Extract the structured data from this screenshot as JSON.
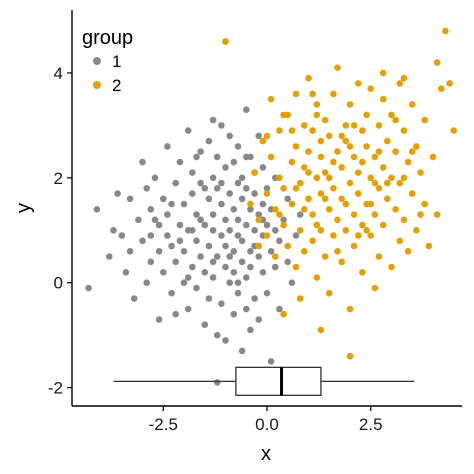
{
  "chart_data": {
    "type": "scatter",
    "xlabel": "x",
    "ylabel": "y",
    "xlim": [
      -4.7,
      4.7
    ],
    "ylim": [
      -2.35,
      5.2
    ],
    "xticks": [
      {
        "value": -2.5,
        "label": "-2.5"
      },
      {
        "value": 0.0,
        "label": "0.0"
      },
      {
        "value": 2.5,
        "label": "2.5"
      }
    ],
    "yticks": [
      {
        "value": -2,
        "label": "-2"
      },
      {
        "value": 0,
        "label": "0"
      },
      {
        "value": 2,
        "label": "2"
      },
      {
        "value": 4,
        "label": "4"
      }
    ],
    "grid": false,
    "legend": {
      "title": "group",
      "position": "top-left",
      "entries": [
        {
          "label": "1",
          "color": "#888888"
        },
        {
          "label": "2",
          "color": "#E69F00"
        }
      ]
    },
    "series": [
      {
        "name": "1",
        "color": "#888888",
        "points": [
          [
            -4.3,
            -0.1
          ],
          [
            -4.1,
            1.4
          ],
          [
            -3.8,
            0.5
          ],
          [
            -3.7,
            1.0
          ],
          [
            -3.6,
            1.7
          ],
          [
            -3.5,
            0.9
          ],
          [
            -3.4,
            0.2
          ],
          [
            -3.3,
            1.6
          ],
          [
            -3.2,
            -0.3
          ],
          [
            -3.1,
            1.2
          ],
          [
            -3.0,
            0.8
          ],
          [
            -3.0,
            2.3
          ],
          [
            -2.9,
            0.0
          ],
          [
            -2.9,
            1.8
          ],
          [
            -2.8,
            0.4
          ],
          [
            -2.8,
            1.4
          ],
          [
            -2.7,
            2.0
          ],
          [
            -2.6,
            0.6
          ],
          [
            -2.6,
            1.1
          ],
          [
            -2.6,
            -0.7
          ],
          [
            -2.5,
            1.6
          ],
          [
            -2.5,
            0.2
          ],
          [
            -2.4,
            0.9
          ],
          [
            -2.4,
            2.6
          ],
          [
            -2.4,
            1.3
          ],
          [
            -2.3,
            -0.2
          ],
          [
            -2.3,
            0.7
          ],
          [
            -2.2,
            1.9
          ],
          [
            -2.2,
            0.4
          ],
          [
            -2.1,
            1.1
          ],
          [
            -2.1,
            2.3
          ],
          [
            -2.0,
            0.0
          ],
          [
            -2.0,
            1.5
          ],
          [
            -2.0,
            0.6
          ],
          [
            -1.9,
            2.9
          ],
          [
            -1.9,
            -0.5
          ],
          [
            -1.9,
            1.0
          ],
          [
            -1.8,
            1.7
          ],
          [
            -1.8,
            0.3
          ],
          [
            -1.8,
            2.1
          ],
          [
            -1.7,
            0.8
          ],
          [
            -1.7,
            -0.1
          ],
          [
            -1.7,
            1.3
          ],
          [
            -1.6,
            2.5
          ],
          [
            -1.6,
            0.5
          ],
          [
            -1.6,
            1.9
          ],
          [
            -1.5,
            -0.8
          ],
          [
            -1.5,
            1.1
          ],
          [
            -1.5,
            0.2
          ],
          [
            -1.4,
            1.6
          ],
          [
            -1.4,
            2.7
          ],
          [
            -1.4,
            0.7
          ],
          [
            -1.4,
            -0.3
          ],
          [
            -1.3,
            1.3
          ],
          [
            -1.3,
            2.0
          ],
          [
            -1.3,
            0.1
          ],
          [
            -1.3,
            1.0
          ],
          [
            -1.2,
            -1.0
          ],
          [
            -1.2,
            1.8
          ],
          [
            -1.2,
            0.5
          ],
          [
            -1.2,
            2.4
          ],
          [
            -1.1,
            0.9
          ],
          [
            -1.1,
            -0.4
          ],
          [
            -1.1,
            1.5
          ],
          [
            -1.1,
            3.0
          ],
          [
            -1.0,
            0.3
          ],
          [
            -1.0,
            1.2
          ],
          [
            -1.0,
            2.2
          ],
          [
            -1.0,
            -1.1
          ],
          [
            -1.0,
            0.7
          ],
          [
            -0.9,
            1.7
          ],
          [
            -0.9,
            0.0
          ],
          [
            -0.9,
            2.8
          ],
          [
            -0.9,
            1.0
          ],
          [
            -0.8,
            -0.6
          ],
          [
            -0.8,
            0.6
          ],
          [
            -0.8,
            1.4
          ],
          [
            -0.8,
            2.3
          ],
          [
            -0.8,
            0.2
          ],
          [
            -0.7,
            1.9
          ],
          [
            -0.7,
            -0.2
          ],
          [
            -0.7,
            0.9
          ],
          [
            -0.7,
            1.2
          ],
          [
            -0.7,
            2.6
          ],
          [
            -0.6,
            0.4
          ],
          [
            -0.6,
            -1.3
          ],
          [
            -0.6,
            1.6
          ],
          [
            -0.6,
            0.8
          ],
          [
            -0.6,
            2.0
          ],
          [
            -0.5,
            -0.5
          ],
          [
            -0.5,
            1.1
          ],
          [
            -0.5,
            0.1
          ],
          [
            -0.5,
            1.8
          ],
          [
            -0.5,
            3.3
          ],
          [
            -0.4,
            0.6
          ],
          [
            -0.4,
            1.4
          ],
          [
            -0.4,
            -0.9
          ],
          [
            -0.4,
            2.4
          ],
          [
            -0.4,
            0.3
          ],
          [
            -0.3,
            1.0
          ],
          [
            -0.3,
            1.7
          ],
          [
            -0.3,
            -0.3
          ],
          [
            -0.3,
            2.1
          ],
          [
            -0.2,
            0.5
          ],
          [
            -0.2,
            1.3
          ],
          [
            -0.2,
            2.8
          ],
          [
            -0.2,
            -0.7
          ],
          [
            -0.1,
            0.9
          ],
          [
            -0.1,
            1.5
          ],
          [
            -0.1,
            0.2
          ],
          [
            -0.1,
            2.2
          ],
          [
            0.0,
            -0.2
          ],
          [
            0.0,
            1.1
          ],
          [
            0.0,
            1.8
          ],
          [
            0.1,
            0.6
          ],
          [
            0.1,
            1.4
          ],
          [
            0.1,
            -1.5
          ],
          [
            0.2,
            0.3
          ],
          [
            0.2,
            1.0
          ],
          [
            0.2,
            2.0
          ],
          [
            0.3,
            0.8
          ],
          [
            0.3,
            -0.5
          ],
          [
            0.4,
            1.2
          ],
          [
            0.5,
            0.4
          ],
          [
            0.5,
            1.6
          ],
          [
            0.6,
            0.0
          ],
          [
            0.7,
            0.9
          ],
          [
            0.8,
            1.3
          ],
          [
            -3.3,
            0.6
          ],
          [
            -2.7,
            1.2
          ],
          [
            -2.3,
            1.5
          ],
          [
            -2.1,
            0.8
          ],
          [
            -1.9,
            0.1
          ],
          [
            -1.7,
            2.4
          ],
          [
            -1.5,
            1.8
          ],
          [
            -1.3,
            0.4
          ],
          [
            -1.1,
            1.9
          ],
          [
            -0.9,
            0.5
          ],
          [
            -0.7,
            0.0
          ],
          [
            -0.5,
            2.4
          ],
          [
            -0.3,
            0.7
          ],
          [
            -0.1,
            1.2
          ],
          [
            -1.6,
            1.2
          ],
          [
            -2.2,
            -0.6
          ],
          [
            -1.0,
            4.6
          ],
          [
            -1.3,
            3.1
          ],
          [
            -0.2,
            -1.9
          ],
          [
            -1.2,
            -1.9
          ],
          [
            -2.8,
            0.9
          ],
          [
            -1.8,
            1.0
          ]
        ]
      },
      {
        "name": "2",
        "color": "#E69F00",
        "points": [
          [
            -1.0,
            4.6
          ],
          [
            -0.3,
            2.1
          ],
          [
            -0.2,
            1.2
          ],
          [
            -0.1,
            2.7
          ],
          [
            0.0,
            0.9
          ],
          [
            0.0,
            1.7
          ],
          [
            0.1,
            2.4
          ],
          [
            0.1,
            3.5
          ],
          [
            0.2,
            1.4
          ],
          [
            0.2,
            0.5
          ],
          [
            0.3,
            2.0
          ],
          [
            0.3,
            2.9
          ],
          [
            0.4,
            1.1
          ],
          [
            0.4,
            1.8
          ],
          [
            0.5,
            3.2
          ],
          [
            0.5,
            0.7
          ],
          [
            0.6,
            2.3
          ],
          [
            0.6,
            1.5
          ],
          [
            0.7,
            3.6
          ],
          [
            0.7,
            0.3
          ],
          [
            0.7,
            2.6
          ],
          [
            0.8,
            1.9
          ],
          [
            0.8,
            1.0
          ],
          [
            0.9,
            3.0
          ],
          [
            0.9,
            2.2
          ],
          [
            0.9,
            0.6
          ],
          [
            1.0,
            1.6
          ],
          [
            1.0,
            3.9
          ],
          [
            1.0,
            2.5
          ],
          [
            1.1,
            0.8
          ],
          [
            1.1,
            1.3
          ],
          [
            1.1,
            2.9
          ],
          [
            1.2,
            2.0
          ],
          [
            1.2,
            0.1
          ],
          [
            1.2,
            3.4
          ],
          [
            1.3,
            1.7
          ],
          [
            1.3,
            2.4
          ],
          [
            1.3,
            1.0
          ],
          [
            1.4,
            3.1
          ],
          [
            1.4,
            0.5
          ],
          [
            1.4,
            2.1
          ],
          [
            1.5,
            1.4
          ],
          [
            1.5,
            2.8
          ],
          [
            1.5,
            -0.2
          ],
          [
            1.6,
            1.8
          ],
          [
            1.6,
            3.6
          ],
          [
            1.6,
            0.9
          ],
          [
            1.7,
            2.5
          ],
          [
            1.7,
            1.2
          ],
          [
            1.7,
            4.1
          ],
          [
            1.8,
            0.4
          ],
          [
            1.8,
            2.2
          ],
          [
            1.8,
            1.6
          ],
          [
            1.9,
            3.0
          ],
          [
            1.9,
            1.0
          ],
          [
            1.9,
            2.7
          ],
          [
            2.0,
            -0.5
          ],
          [
            2.0,
            1.9
          ],
          [
            2.0,
            3.4
          ],
          [
            2.1,
            1.3
          ],
          [
            2.1,
            2.4
          ],
          [
            2.1,
            0.7
          ],
          [
            2.2,
            3.8
          ],
          [
            2.2,
            1.7
          ],
          [
            2.2,
            2.1
          ],
          [
            2.3,
            0.2
          ],
          [
            2.3,
            2.9
          ],
          [
            2.3,
            1.1
          ],
          [
            2.4,
            3.2
          ],
          [
            2.4,
            1.5
          ],
          [
            2.4,
            2.6
          ],
          [
            2.5,
            0.9
          ],
          [
            2.5,
            2.0
          ],
          [
            2.5,
            3.7
          ],
          [
            2.6,
            1.3
          ],
          [
            2.6,
            2.4
          ],
          [
            2.6,
            -0.1
          ],
          [
            2.7,
            1.8
          ],
          [
            2.7,
            3.0
          ],
          [
            2.7,
            0.5
          ],
          [
            2.8,
            2.2
          ],
          [
            2.8,
            1.1
          ],
          [
            2.8,
            3.5
          ],
          [
            2.9,
            1.6
          ],
          [
            2.9,
            2.7
          ],
          [
            3.0,
            0.3
          ],
          [
            3.0,
            2.0
          ],
          [
            3.0,
            3.2
          ],
          [
            3.1,
            1.4
          ],
          [
            3.1,
            2.5
          ],
          [
            3.2,
            0.8
          ],
          [
            3.2,
            3.8
          ],
          [
            3.2,
            1.9
          ],
          [
            3.3,
            2.9
          ],
          [
            3.3,
            1.2
          ],
          [
            3.4,
            2.3
          ],
          [
            3.4,
            0.6
          ],
          [
            3.5,
            3.4
          ],
          [
            3.5,
            1.7
          ],
          [
            3.6,
            2.6
          ],
          [
            3.6,
            1.0
          ],
          [
            3.7,
            2.1
          ],
          [
            3.8,
            3.1
          ],
          [
            3.8,
            1.5
          ],
          [
            3.9,
            0.7
          ],
          [
            4.0,
            2.4
          ],
          [
            4.1,
            1.3
          ],
          [
            4.2,
            3.7
          ],
          [
            4.3,
            4.8
          ],
          [
            4.4,
            3.8
          ],
          [
            4.5,
            2.9
          ],
          [
            2.0,
            -1.4
          ],
          [
            1.3,
            -0.9
          ],
          [
            0.8,
            -0.3
          ],
          [
            0.4,
            -0.6
          ],
          [
            -0.4,
            1.5
          ],
          [
            -0.2,
            0.7
          ],
          [
            0.0,
            2.8
          ],
          [
            0.3,
            1.3
          ],
          [
            0.6,
            2.9
          ],
          [
            0.9,
            1.4
          ],
          [
            1.1,
            3.6
          ],
          [
            1.3,
            2.7
          ],
          [
            1.5,
            2.0
          ],
          [
            1.7,
            0.6
          ],
          [
            1.9,
            1.5
          ],
          [
            2.1,
            3.0
          ],
          [
            2.3,
            2.3
          ],
          [
            2.5,
            1.5
          ],
          [
            2.7,
            2.5
          ],
          [
            2.9,
            1.9
          ],
          [
            3.1,
            3.1
          ],
          [
            3.3,
            2.0
          ],
          [
            3.5,
            2.5
          ],
          [
            3.7,
            1.3
          ],
          [
            1.0,
            2.1
          ],
          [
            1.4,
            1.6
          ],
          [
            1.8,
            2.8
          ],
          [
            2.2,
            0.9
          ],
          [
            2.6,
            1.9
          ],
          [
            1.2,
            1.1
          ],
          [
            1.6,
            2.3
          ],
          [
            2.0,
            2.6
          ],
          [
            2.4,
            1.0
          ],
          [
            0.7,
            1.8
          ],
          [
            4.1,
            4.2
          ],
          [
            3.3,
            3.9
          ],
          [
            2.8,
            4.0
          ],
          [
            0.4,
            3.2
          ],
          [
            1.2,
            3.2
          ]
        ]
      }
    ],
    "boxplot": {
      "orientation": "horizontal",
      "y_position": -1.88,
      "min": -3.7,
      "q1": -0.75,
      "median": 0.35,
      "q3": 1.3,
      "max": 3.55
    }
  }
}
